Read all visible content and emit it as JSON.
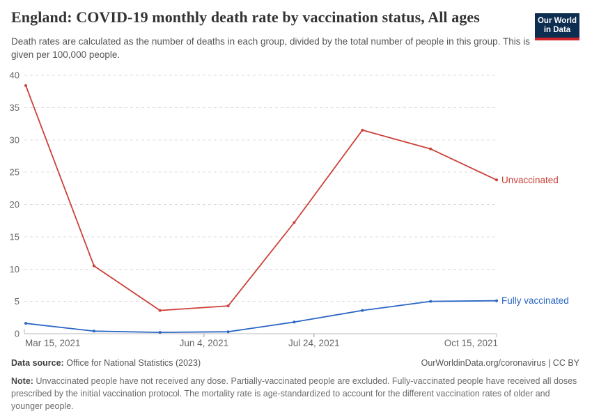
{
  "header": {
    "title": "England: COVID-19 monthly death rate by vaccination status, All ages",
    "subtitle": "Death rates are calculated as the number of deaths in each group, divided by the total number of people in this group. This is given per 100,000 people.",
    "logo": {
      "line1": "Our World",
      "line2": "in Data",
      "bg_color": "#0d2d51",
      "accent_color": "#d0242b"
    }
  },
  "chart_data": {
    "type": "line",
    "title": "England: COVID-19 monthly death rate by vaccination status, All ages",
    "x": [
      "Mar 15, 2021",
      "Apr 15, 2021",
      "May 15, 2021",
      "Jun 15, 2021",
      "Jul 15, 2021",
      "Aug 15, 2021",
      "Sep 15, 2021",
      "Oct 15, 2021"
    ],
    "x_days": [
      0,
      31,
      61,
      92,
      122,
      153,
      184,
      214
    ],
    "series": [
      {
        "name": "Unvaccinated",
        "color": "#cb4038",
        "values": [
          38.4,
          10.5,
          3.6,
          4.3,
          17.2,
          31.5,
          28.6,
          23.8
        ]
      },
      {
        "name": "Fully vaccinated",
        "color": "#2b66c4",
        "values": [
          1.6,
          0.4,
          0.2,
          0.3,
          1.8,
          3.6,
          5.0,
          5.1
        ]
      }
    ],
    "ylabel": "",
    "xlabel": "",
    "ylim": [
      0,
      40
    ],
    "yticks": [
      0,
      5,
      10,
      15,
      20,
      25,
      30,
      35,
      40
    ],
    "xticks": [
      {
        "label": "Mar 15, 2021",
        "day": 0,
        "align": "start"
      },
      {
        "label": "Jun 4, 2021",
        "day": 81,
        "align": "middle"
      },
      {
        "label": "Jul 24, 2021",
        "day": 131,
        "align": "middle"
      },
      {
        "label": "Oct 15, 2021",
        "day": 214,
        "align": "end"
      }
    ],
    "grid": "horizontal-dashed",
    "legend_position": "right-of-line-end",
    "unit": "deaths per 100,000 people"
  },
  "footer": {
    "data_source_label": "Data source:",
    "data_source": "Office for National Statistics (2023)",
    "attribution": "OurWorldinData.org/coronavirus | CC BY",
    "note_label": "Note:",
    "note": "Unvaccinated people have not received any dose. Partially-vaccinated people are excluded. Fully-vaccinated people have received all doses prescribed by the initial vaccination protocol. The mortality rate is age-standardized to account for the different vaccination rates of older and younger people."
  }
}
